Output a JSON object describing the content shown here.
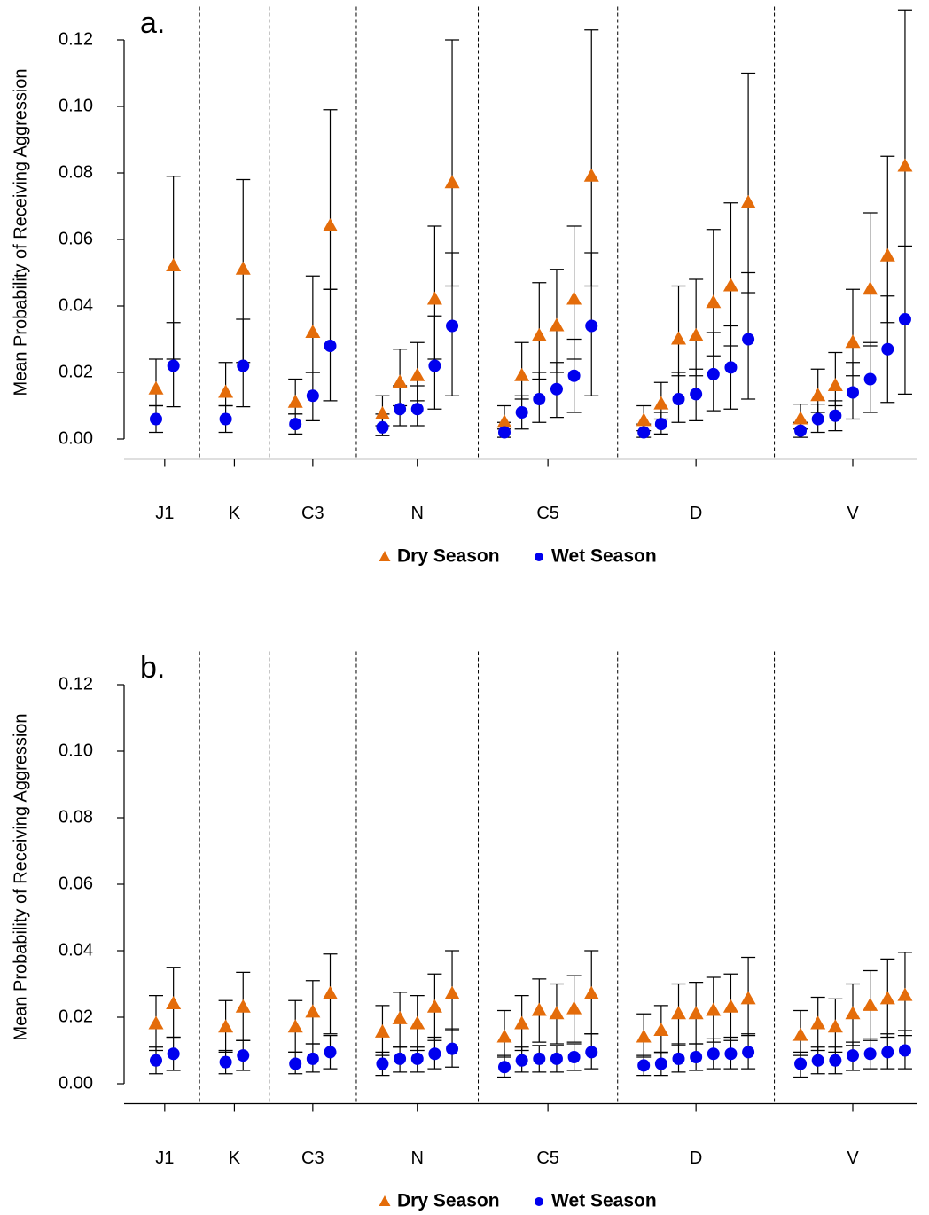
{
  "chart_data": [
    {
      "type": "scatter",
      "title": "a.",
      "ylabel": "Mean Probability of Receiving Aggression",
      "categories": [
        "J1",
        "K",
        "C3",
        "N",
        "C5",
        "D",
        "V"
      ],
      "ylim": [
        -0.006,
        0.13
      ],
      "yticks": [
        {
          "value": 0,
          "label": "0.00"
        },
        {
          "value": 0.02,
          "label": "0.02"
        },
        {
          "value": 0.04,
          "label": "0.04"
        },
        {
          "value": 0.06,
          "label": "0.06"
        },
        {
          "value": 0.08,
          "label": "0.08"
        },
        {
          "value": 0.1,
          "label": "0.10"
        },
        {
          "value": 0.12,
          "label": "0.12"
        }
      ],
      "separators": true,
      "series": [
        {
          "name": "Dry Season",
          "color": "#e46c0a",
          "marker": "triangle",
          "values": [
            [
              0.015,
              0.052
            ],
            [
              0.014,
              0.051
            ],
            [
              0.011,
              0.032,
              0.064
            ],
            [
              0.0075,
              0.017,
              0.019,
              0.042,
              0.077
            ],
            [
              0.005,
              0.019,
              0.031,
              0.034,
              0.042,
              0.079
            ],
            [
              0.0055,
              0.0105,
              0.03,
              0.031,
              0.041,
              0.046,
              0.071
            ],
            [
              0.006,
              0.013,
              0.016,
              0.029,
              0.045,
              0.055,
              0.082
            ]
          ],
          "lower": [
            [
              0.01,
              0.024
            ],
            [
              0.01,
              0.023
            ],
            [
              0.0075,
              0.02,
              0.045
            ],
            [
              0.004,
              0.01,
              0.0115,
              0.024,
              0.046
            ],
            [
              0.003,
              0.012,
              0.018,
              0.02,
              0.024,
              0.046
            ],
            [
              0.0025,
              0.006,
              0.019,
              0.019,
              0.025,
              0.028,
              0.044
            ],
            [
              0.003,
              0.008,
              0.01,
              0.019,
              0.028,
              0.035,
              0.058
            ]
          ],
          "upper": [
            [
              0.024,
              0.079
            ],
            [
              0.023,
              0.078
            ],
            [
              0.018,
              0.049,
              0.099
            ],
            [
              0.013,
              0.027,
              0.029,
              0.064,
              0.12
            ],
            [
              0.01,
              0.029,
              0.047,
              0.051,
              0.064,
              0.123
            ],
            [
              0.01,
              0.017,
              0.046,
              0.048,
              0.063,
              0.071,
              0.11
            ],
            [
              0.0105,
              0.021,
              0.026,
              0.045,
              0.068,
              0.085,
              0.129
            ]
          ]
        },
        {
          "name": "Wet Season",
          "color": "#0000ee",
          "marker": "circle",
          "values": [
            [
              0.006,
              0.022
            ],
            [
              0.006,
              0.022
            ],
            [
              0.0045,
              0.013,
              0.028
            ],
            [
              0.0035,
              0.009,
              0.009,
              0.022,
              0.034
            ],
            [
              0.002,
              0.008,
              0.012,
              0.015,
              0.019,
              0.034
            ],
            [
              0.002,
              0.0045,
              0.012,
              0.0135,
              0.0195,
              0.0215,
              0.03
            ],
            [
              0.0025,
              0.006,
              0.007,
              0.014,
              0.018,
              0.027,
              0.036
            ]
          ],
          "lower": [
            [
              0.002,
              0.0097
            ],
            [
              0.002,
              0.0097
            ],
            [
              0.0015,
              0.0055,
              0.0115
            ],
            [
              0.001,
              0.004,
              0.004,
              0.009,
              0.013
            ],
            [
              0.0005,
              0.003,
              0.005,
              0.0065,
              0.008,
              0.013
            ],
            [
              0.0005,
              0.0015,
              0.005,
              0.0055,
              0.0085,
              0.009,
              0.012
            ],
            [
              0.0005,
              0.002,
              0.0025,
              0.006,
              0.008,
              0.011,
              0.0135
            ]
          ],
          "upper": [
            [
              0.01,
              0.035
            ],
            [
              0.01,
              0.036
            ],
            [
              0.0075,
              0.02,
              0.045
            ],
            [
              0.0075,
              0.016,
              0.016,
              0.037,
              0.056
            ],
            [
              0.005,
              0.013,
              0.02,
              0.023,
              0.03,
              0.056
            ],
            [
              0.0045,
              0.008,
              0.02,
              0.021,
              0.032,
              0.034,
              0.05
            ],
            [
              0.005,
              0.0105,
              0.0115,
              0.023,
              0.029,
              0.043,
              0.058
            ]
          ]
        }
      ]
    },
    {
      "type": "scatter",
      "title": "b.",
      "ylabel": "Mean Probability of Receiving Aggression",
      "categories": [
        "J1",
        "K",
        "C3",
        "N",
        "C5",
        "D",
        "V"
      ],
      "ylim": [
        -0.006,
        0.13
      ],
      "yticks": [
        {
          "value": 0,
          "label": "0.00"
        },
        {
          "value": 0.02,
          "label": "0.02"
        },
        {
          "value": 0.04,
          "label": "0.04"
        },
        {
          "value": 0.06,
          "label": "0.06"
        },
        {
          "value": 0.08,
          "label": "0.08"
        },
        {
          "value": 0.1,
          "label": "0.10"
        },
        {
          "value": 0.12,
          "label": "0.12"
        }
      ],
      "separators": true,
      "series": [
        {
          "name": "Dry Season",
          "color": "#e46c0a",
          "marker": "triangle",
          "values": [
            [
              0.018,
              0.024
            ],
            [
              0.017,
              0.023
            ],
            [
              0.017,
              0.0215,
              0.027
            ],
            [
              0.0155,
              0.0195,
              0.018,
              0.023,
              0.027
            ],
            [
              0.014,
              0.018,
              0.022,
              0.021,
              0.0225,
              0.027
            ],
            [
              0.014,
              0.016,
              0.021,
              0.021,
              0.022,
              0.023,
              0.0255
            ],
            [
              0.0145,
              0.018,
              0.017,
              0.021,
              0.0235,
              0.0255,
              0.0265
            ]
          ],
          "lower": [
            [
              0.01,
              0.014
            ],
            [
              0.0095,
              0.013
            ],
            [
              0.0095,
              0.012,
              0.015
            ],
            [
              0.0085,
              0.011,
              0.01,
              0.013,
              0.016
            ],
            [
              0.008,
              0.01,
              0.0125,
              0.012,
              0.0125,
              0.015
            ],
            [
              0.008,
              0.009,
              0.0115,
              0.012,
              0.0125,
              0.013,
              0.0145
            ],
            [
              0.0085,
              0.01,
              0.0095,
              0.0115,
              0.013,
              0.014,
              0.0145
            ]
          ],
          "upper": [
            [
              0.0265,
              0.035
            ],
            [
              0.025,
              0.0335
            ],
            [
              0.025,
              0.031,
              0.039
            ],
            [
              0.0235,
              0.0275,
              0.0265,
              0.033,
              0.04
            ],
            [
              0.022,
              0.0265,
              0.0315,
              0.03,
              0.0325,
              0.04
            ],
            [
              0.021,
              0.0235,
              0.03,
              0.0305,
              0.032,
              0.033,
              0.038
            ],
            [
              0.022,
              0.026,
              0.0255,
              0.03,
              0.034,
              0.0375,
              0.0395
            ]
          ]
        },
        {
          "name": "Wet Season",
          "color": "#0000ee",
          "marker": "circle",
          "values": [
            [
              0.007,
              0.009
            ],
            [
              0.0065,
              0.0085
            ],
            [
              0.006,
              0.0075,
              0.0095
            ],
            [
              0.006,
              0.0075,
              0.0075,
              0.009,
              0.0105
            ],
            [
              0.005,
              0.007,
              0.0075,
              0.0075,
              0.008,
              0.0095
            ],
            [
              0.0055,
              0.006,
              0.0075,
              0.008,
              0.009,
              0.009,
              0.0095
            ],
            [
              0.006,
              0.007,
              0.007,
              0.0085,
              0.009,
              0.0095,
              0.01
            ]
          ],
          "lower": [
            [
              0.003,
              0.004
            ],
            [
              0.003,
              0.004
            ],
            [
              0.003,
              0.0035,
              0.0045
            ],
            [
              0.0025,
              0.0035,
              0.0035,
              0.0045,
              0.005
            ],
            [
              0.002,
              0.0035,
              0.0035,
              0.0035,
              0.004,
              0.0045
            ],
            [
              0.0025,
              0.0025,
              0.0035,
              0.004,
              0.0045,
              0.0045,
              0.0045
            ],
            [
              0.002,
              0.003,
              0.003,
              0.004,
              0.0045,
              0.0045,
              0.0045
            ]
          ],
          "upper": [
            [
              0.011,
              0.014
            ],
            [
              0.01,
              0.013
            ],
            [
              0.0095,
              0.012,
              0.0145
            ],
            [
              0.0095,
              0.011,
              0.011,
              0.014,
              0.0165
            ],
            [
              0.0085,
              0.011,
              0.0115,
              0.0115,
              0.012,
              0.015
            ],
            [
              0.0085,
              0.0095,
              0.012,
              0.012,
              0.0135,
              0.014,
              0.015
            ],
            [
              0.0095,
              0.011,
              0.011,
              0.0125,
              0.0135,
              0.015,
              0.016
            ]
          ]
        }
      ]
    }
  ]
}
